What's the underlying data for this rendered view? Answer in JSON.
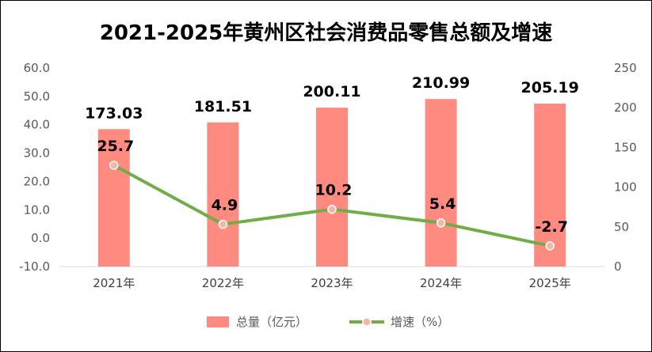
{
  "title": "2021-2025年黄州区社会消费品零售总额及增速",
  "chart_data": {
    "type": "bar",
    "title": "2021-2025年黄州区社会消费品零售总额及增速",
    "categories": [
      "2021年",
      "2022年",
      "2023年",
      "2024年",
      "2025年"
    ],
    "series": [
      {
        "name": "总量（亿元）",
        "type": "bar",
        "axis": "right",
        "values": [
          173.03,
          181.51,
          200.11,
          210.99,
          205.19
        ],
        "labels": [
          "173.03",
          "181.51",
          "200.11",
          "210.99",
          "205.19"
        ],
        "color": "#FF8A80"
      },
      {
        "name": "增速（%）",
        "type": "line",
        "axis": "left",
        "values": [
          25.7,
          4.9,
          10.2,
          5.4,
          -2.7
        ],
        "labels": [
          "25.7",
          "4.9",
          "10.2",
          "5.4",
          "-2.7"
        ],
        "color": "#70AD47",
        "marker_color": "#F4B6A6"
      }
    ],
    "y_left": {
      "ylim": [
        -10,
        60
      ],
      "ticks": [
        "60.0",
        "50.0",
        "40.0",
        "30.0",
        "20.0",
        "10.0",
        "0.0",
        "-10.0"
      ]
    },
    "y_right": {
      "ylim": [
        0,
        250
      ],
      "ticks": [
        "250",
        "200",
        "150",
        "100",
        "50",
        "0"
      ]
    },
    "grid": false,
    "legend": "bottom"
  }
}
